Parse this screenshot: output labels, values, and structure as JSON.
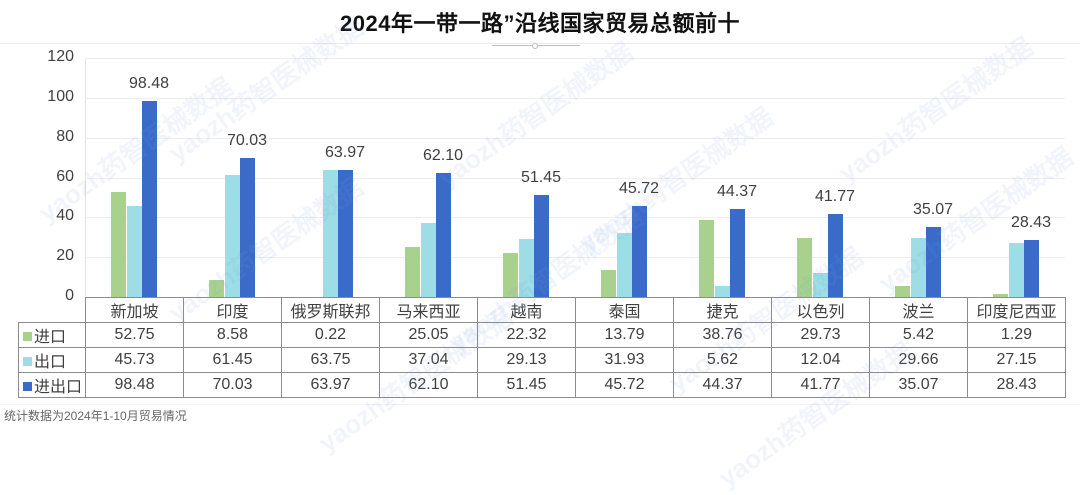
{
  "title": "2024年一带一路”沿线国家贸易总额前十",
  "footnote": "统计数据为2024年1-10月贸易情况",
  "watermark": "yaozh药智医械数据",
  "colors": {
    "import": "#a9d18e",
    "export": "#9ddde6",
    "total": "#3a6bc9"
  },
  "axis": {
    "ticks": [
      "0",
      "20",
      "40",
      "60",
      "80",
      "100",
      "120"
    ]
  },
  "table": {
    "countries": [
      "新加坡",
      "印度",
      "俄罗斯联邦",
      "马来西亚",
      "越南",
      "泰国",
      "捷克",
      "以色列",
      "波兰",
      "印度尼西亚"
    ],
    "rows": [
      {
        "label": "进口",
        "values": [
          "52.75",
          "8.58",
          "0.22",
          "25.05",
          "22.32",
          "13.79",
          "38.76",
          "29.73",
          "5.42",
          "1.29"
        ]
      },
      {
        "label": "出口",
        "values": [
          "45.73",
          "61.45",
          "63.75",
          "37.04",
          "29.13",
          "31.93",
          "5.62",
          "12.04",
          "29.66",
          "27.15"
        ]
      },
      {
        "label": "进出口",
        "values": [
          "98.48",
          "70.03",
          "63.97",
          "62.10",
          "51.45",
          "45.72",
          "44.37",
          "41.77",
          "35.07",
          "28.43"
        ]
      }
    ]
  },
  "chart_data": {
    "type": "bar",
    "title": "2024年一带一路”沿线国家贸易总额前十",
    "xlabel": "",
    "ylabel": "",
    "ylim": [
      0,
      120
    ],
    "yticks": [
      0,
      20,
      40,
      60,
      80,
      100,
      120
    ],
    "grid": true,
    "legend_position": "data-table",
    "categories": [
      "新加坡",
      "印度",
      "俄罗斯联邦",
      "马来西亚",
      "越南",
      "泰国",
      "捷克",
      "以色列",
      "波兰",
      "印度尼西亚"
    ],
    "series": [
      {
        "name": "进口",
        "color": "#a9d18e",
        "values": [
          52.75,
          8.58,
          0.22,
          25.05,
          22.32,
          13.79,
          38.76,
          29.73,
          5.42,
          1.29
        ]
      },
      {
        "name": "出口",
        "color": "#9ddde6",
        "values": [
          45.73,
          61.45,
          63.75,
          37.04,
          29.13,
          31.93,
          5.62,
          12.04,
          29.66,
          27.15
        ]
      },
      {
        "name": "进出口",
        "color": "#3a6bc9",
        "values": [
          98.48,
          70.03,
          63.97,
          62.1,
          51.45,
          45.72,
          44.37,
          41.77,
          35.07,
          28.43
        ]
      }
    ],
    "data_labels": {
      "series": "进出口",
      "values": [
        "98.48",
        "70.03",
        "63.97",
        "62.10",
        "51.45",
        "45.72",
        "44.37",
        "41.77",
        "35.07",
        "28.43"
      ]
    },
    "annotations": [
      "统计数据为2024年1-10月贸易情况"
    ]
  }
}
